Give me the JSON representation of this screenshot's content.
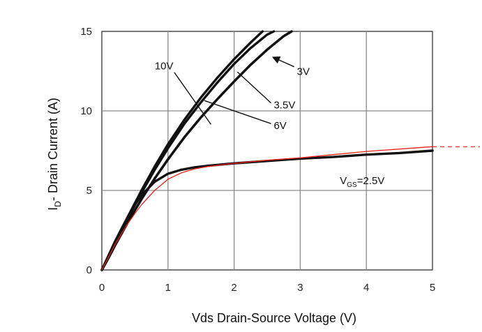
{
  "chart_data": {
    "type": "line",
    "xlabel": "Vds Drain-Source Voltage (V)",
    "ylabel_main": "I",
    "ylabel_sub": "D",
    "ylabel_rest": "- Drain Current (A)",
    "xlim": [
      0,
      5
    ],
    "ylim": [
      0,
      15
    ],
    "xticks": [
      "0",
      "1",
      "2",
      "3",
      "4",
      "5"
    ],
    "yticks": [
      "0",
      "5",
      "10",
      "15"
    ],
    "grid": true,
    "series": [
      {
        "name": "10V",
        "color": "#111111",
        "x": [
          0,
          0.1,
          0.2,
          0.4,
          0.6,
          0.8,
          1.0,
          1.25,
          1.5,
          1.75,
          2.0,
          2.25,
          2.43
        ],
        "y": [
          0,
          0.8,
          1.7,
          3.4,
          5.0,
          6.5,
          7.9,
          9.45,
          10.85,
          12.1,
          13.25,
          14.3,
          15.0
        ]
      },
      {
        "name": "6V",
        "color": "#111111",
        "x": [
          0,
          0.1,
          0.2,
          0.4,
          0.6,
          0.8,
          1.0,
          1.25,
          1.5,
          1.75,
          2.0,
          2.25,
          2.5,
          2.6
        ],
        "y": [
          0,
          0.78,
          1.65,
          3.3,
          4.85,
          6.3,
          7.65,
          9.2,
          10.55,
          11.8,
          12.95,
          13.95,
          14.8,
          15.0
        ]
      },
      {
        "name": "3.5V",
        "color": "#111111",
        "x": [
          0,
          0.1,
          0.2,
          0.4,
          0.6,
          0.8,
          1.0,
          1.25,
          1.5,
          1.75,
          2.0,
          2.25,
          2.5,
          2.75,
          2.87
        ],
        "y": [
          0,
          0.75,
          1.55,
          3.05,
          4.45,
          5.75,
          6.95,
          8.35,
          9.6,
          10.75,
          11.85,
          12.9,
          13.85,
          14.7,
          15.0
        ]
      },
      {
        "name": "3V",
        "color": "#111111",
        "x": [
          0,
          0.1,
          0.2,
          0.4,
          0.6,
          0.8,
          1.0,
          1.25,
          1.5,
          1.75,
          2.0,
          2.25,
          2.5,
          2.75,
          2.87
        ],
        "y": [
          0,
          0.75,
          1.55,
          3.05,
          4.45,
          5.75,
          6.95,
          8.35,
          9.6,
          10.75,
          11.85,
          12.9,
          13.85,
          14.7,
          15.0
        ]
      },
      {
        "name": "2.5V",
        "color": "#111111",
        "x": [
          0,
          0.1,
          0.2,
          0.3,
          0.4,
          0.5,
          0.6,
          0.8,
          1.0,
          1.2,
          1.4,
          1.6,
          2.0,
          2.5,
          3.0,
          3.5,
          4.0,
          4.5,
          5.0
        ],
        "y": [
          0,
          0.9,
          1.8,
          2.6,
          3.4,
          4.1,
          4.7,
          5.55,
          6.05,
          6.3,
          6.45,
          6.55,
          6.7,
          6.85,
          7.0,
          7.1,
          7.25,
          7.35,
          7.5
        ]
      },
      {
        "name": "2.5V",
        "color": "#e8211c",
        "x": [
          0,
          0.1,
          0.2,
          0.3,
          0.4,
          0.5,
          0.6,
          0.8,
          1.0,
          1.2,
          1.4,
          1.6,
          2.0,
          2.5,
          3.0,
          3.5,
          4.0,
          4.5,
          5.0
        ],
        "y": [
          0,
          0.8,
          1.6,
          2.3,
          2.95,
          3.55,
          4.1,
          5.0,
          5.7,
          6.1,
          6.35,
          6.5,
          6.7,
          6.9,
          7.05,
          7.25,
          7.45,
          7.6,
          7.75
        ],
        "dashed_extension": [
          5.0,
          7.75
        ]
      }
    ],
    "annotations": [
      {
        "text": "10V",
        "x": 0.8,
        "y": 12.6,
        "arrow_to": [
          1.65,
          9.15
        ]
      },
      {
        "text": "3V",
        "x": 2.95,
        "y": 12.25,
        "arrow_to": [
          2.6,
          13.35
        ]
      },
      {
        "text": "3.5V",
        "x": 2.6,
        "y": 10.15,
        "arrow_to": [
          2.05,
          12.45
        ]
      },
      {
        "text": "6V",
        "x": 2.6,
        "y": 8.85,
        "arrow_to": [
          1.55,
          10.65
        ]
      },
      {
        "text_main": "V",
        "text_sub": "GS",
        "text_rest": "=2.5V",
        "x": 3.6,
        "y": 5.4
      }
    ]
  }
}
